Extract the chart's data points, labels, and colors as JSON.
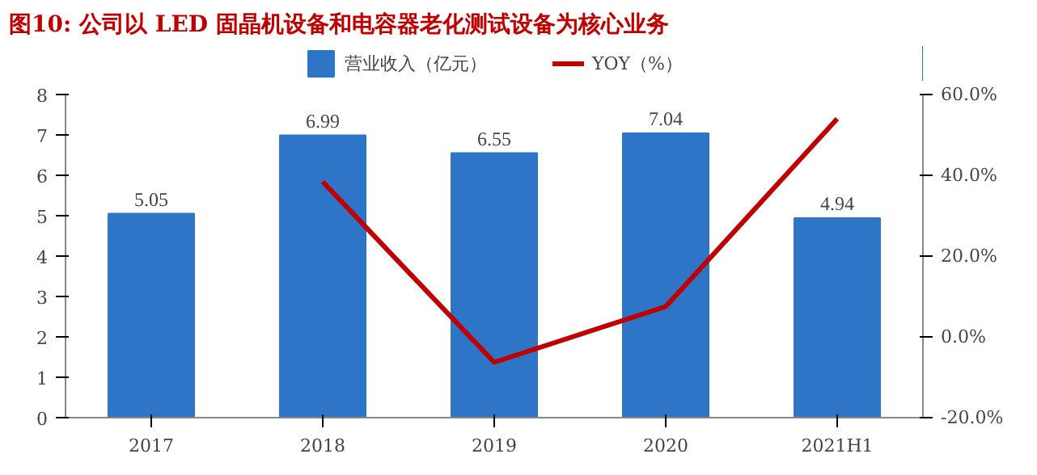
{
  "chart_data": {
    "type": "bar",
    "title": "图10:  公司以 LED 固晶机设备和电容器老化测试设备为核心业务",
    "categories": [
      "2017",
      "2018",
      "2019",
      "2020",
      "2021H1"
    ],
    "series": [
      {
        "name": "营业收入（亿元）",
        "color": "#2e75c8",
        "values": [
          5.05,
          6.99,
          6.55,
          7.04,
          4.94
        ],
        "data_labels": true
      },
      {
        "name": "YOY（%）",
        "type": "line",
        "axis": "y2",
        "color": "#c00000",
        "values": [
          null,
          38.4,
          -6.3,
          7.5,
          54.0
        ]
      }
    ],
    "ylim": [
      0,
      8
    ],
    "yticks": [
      0,
      1,
      2,
      3,
      4,
      5,
      6,
      7,
      8
    ],
    "y2lim": [
      -20,
      60
    ],
    "y2ticks": [
      {
        "value": -20,
        "label": "-20.0%"
      },
      {
        "value": 0,
        "label": "0.0%"
      },
      {
        "value": 20,
        "label": "20.0%"
      },
      {
        "value": 40,
        "label": "40.0%"
      },
      {
        "value": 60,
        "label": "60.0%"
      }
    ],
    "grid": false,
    "legend": "top",
    "marker": "none",
    "line_style": "solid"
  }
}
